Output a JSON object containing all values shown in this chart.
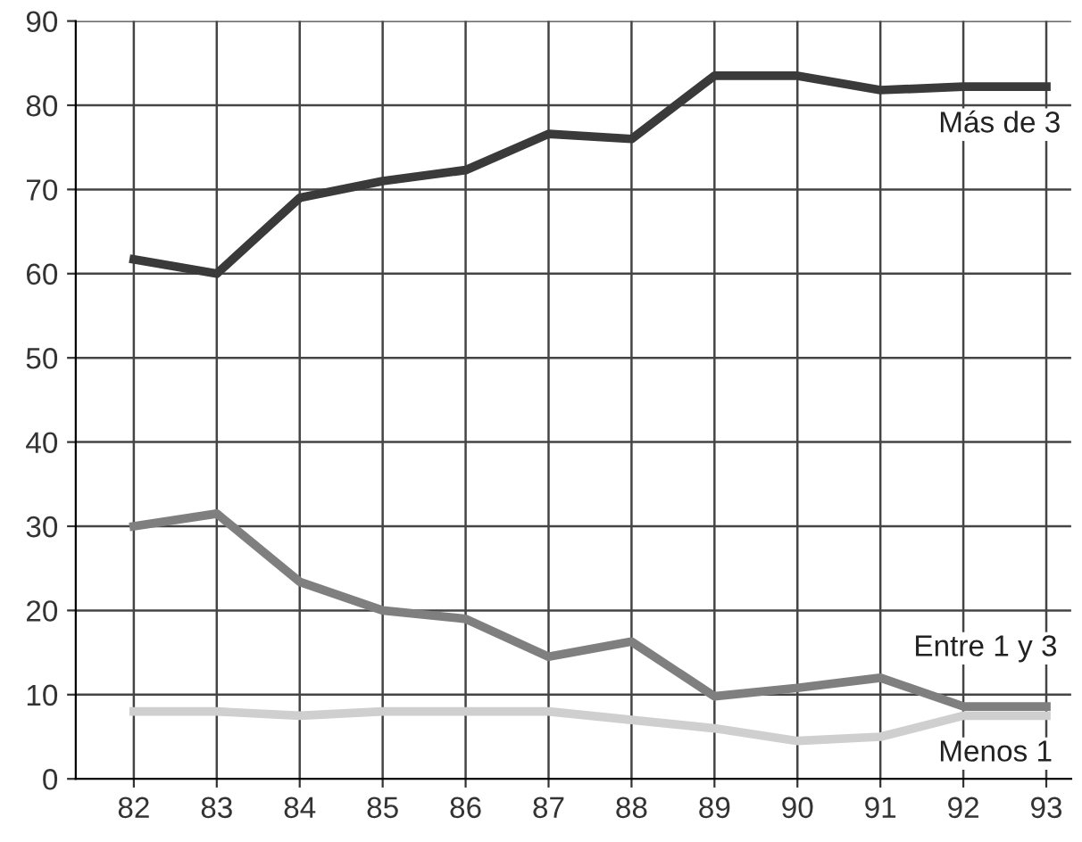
{
  "chart_data": {
    "type": "line",
    "x": [
      82,
      83,
      84,
      85,
      86,
      87,
      88,
      89,
      90,
      91,
      92,
      93
    ],
    "series": [
      {
        "name": "Más de 3",
        "color": "#3a3a3a",
        "values": [
          61.7,
          60,
          69,
          71,
          72.3,
          76.6,
          76,
          83.5,
          83.5,
          81.8,
          82.2,
          82.2
        ]
      },
      {
        "name": "Entre 1 y 3",
        "color": "#7f7f7f",
        "values": [
          30,
          31.5,
          23.4,
          20,
          19,
          14.5,
          16.3,
          9.8,
          10.8,
          12,
          8.6,
          8.6
        ]
      },
      {
        "name": "Menos 1",
        "color": "#cfcfcf",
        "values": [
          8,
          8,
          7.5,
          8,
          8,
          8,
          7,
          6,
          4.5,
          5,
          7.5,
          7.5
        ]
      }
    ],
    "xlim": [
      81.3,
      93.3
    ],
    "xticks": [
      82,
      83,
      84,
      85,
      86,
      87,
      88,
      89,
      90,
      91,
      92,
      93
    ],
    "ylim": [
      0,
      90
    ],
    "yticks": [
      0,
      10,
      20,
      30,
      40,
      50,
      60,
      70,
      80,
      90
    ],
    "grid": true,
    "marker": "none",
    "line_style": "solid",
    "legend": false
  }
}
